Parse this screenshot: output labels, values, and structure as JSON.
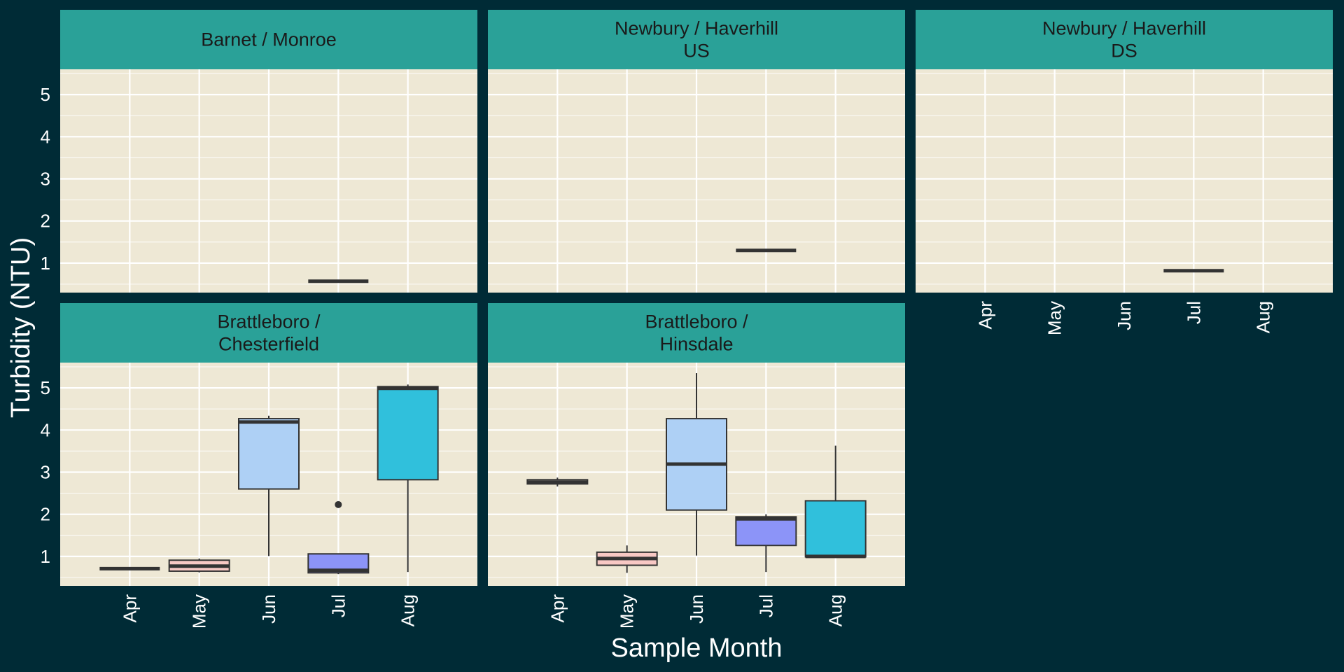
{
  "chart_data": {
    "type": "boxplot",
    "xlabel": "Sample Month",
    "ylabel": "Turbidity (NTU)",
    "categories": [
      "Apr",
      "May",
      "Jun",
      "Jul",
      "Aug"
    ],
    "ylim": [
      0.3,
      5.6
    ],
    "yticks": [
      1,
      2,
      3,
      4,
      5
    ],
    "grid": true,
    "colors": {
      "background": "#002b36",
      "panel": "#eee8d5",
      "strip": "#2aa198",
      "gridline": "#ffffff",
      "box_outline": "#333333",
      "month_fill": {
        "Apr": "#eee8d5",
        "May": "#f8c8c4",
        "Jun": "#aed0f5",
        "Jul": "#8c94f8",
        "Aug": "#30c0dc"
      }
    },
    "panels": [
      {
        "strip": [
          "Barnet / Monroe"
        ],
        "boxes": [
          {
            "month": "Jul",
            "min": 0.57,
            "q1": 0.57,
            "median": 0.57,
            "q3": 0.57,
            "max": 0.57
          }
        ]
      },
      {
        "strip": [
          "Newbury / Haverhill",
          "US"
        ],
        "boxes": [
          {
            "month": "Jul",
            "min": 1.3,
            "q1": 1.3,
            "median": 1.3,
            "q3": 1.3,
            "max": 1.3
          }
        ]
      },
      {
        "strip": [
          "Newbury / Haverhill",
          "DS"
        ],
        "boxes": [
          {
            "month": "Jul",
            "min": 0.82,
            "q1": 0.82,
            "median": 0.82,
            "q3": 0.82,
            "max": 0.82
          }
        ]
      },
      {
        "strip": [
          "Brattleboro /",
          "Chesterfield"
        ],
        "boxes": [
          {
            "month": "Apr",
            "min": 0.71,
            "q1": 0.71,
            "median": 0.71,
            "q3": 0.71,
            "max": 0.71
          },
          {
            "month": "May",
            "min": 0.62,
            "q1": 0.65,
            "median": 0.77,
            "q3": 0.91,
            "max": 0.95
          },
          {
            "month": "Jun",
            "min": 1.01,
            "q1": 2.6,
            "median": 4.19,
            "q3": 4.27,
            "max": 4.34
          },
          {
            "month": "Jul",
            "min": 0.58,
            "q1": 0.61,
            "median": 0.67,
            "q3": 1.06,
            "max": 1.06,
            "outliers": [
              2.23
            ]
          },
          {
            "month": "Aug",
            "min": 0.63,
            "q1": 2.82,
            "median": 4.99,
            "q3": 5.03,
            "max": 5.08
          }
        ]
      },
      {
        "strip": [
          "Brattleboro /",
          "Hinsdale"
        ],
        "boxes": [
          {
            "month": "Apr",
            "min": 2.66,
            "q1": 2.72,
            "median": 2.76,
            "q3": 2.82,
            "max": 2.87
          },
          {
            "month": "May",
            "min": 0.61,
            "q1": 0.79,
            "median": 0.95,
            "q3": 1.1,
            "max": 1.26
          },
          {
            "month": "Jun",
            "min": 1.02,
            "q1": 2.1,
            "median": 3.19,
            "q3": 4.27,
            "max": 5.35
          },
          {
            "month": "Jul",
            "min": 0.63,
            "q1": 1.26,
            "median": 1.89,
            "q3": 1.94,
            "max": 2.0
          },
          {
            "month": "Aug",
            "min": 0.99,
            "q1": 0.99,
            "median": 1.0,
            "q3": 2.32,
            "max": 3.63
          }
        ]
      }
    ]
  }
}
